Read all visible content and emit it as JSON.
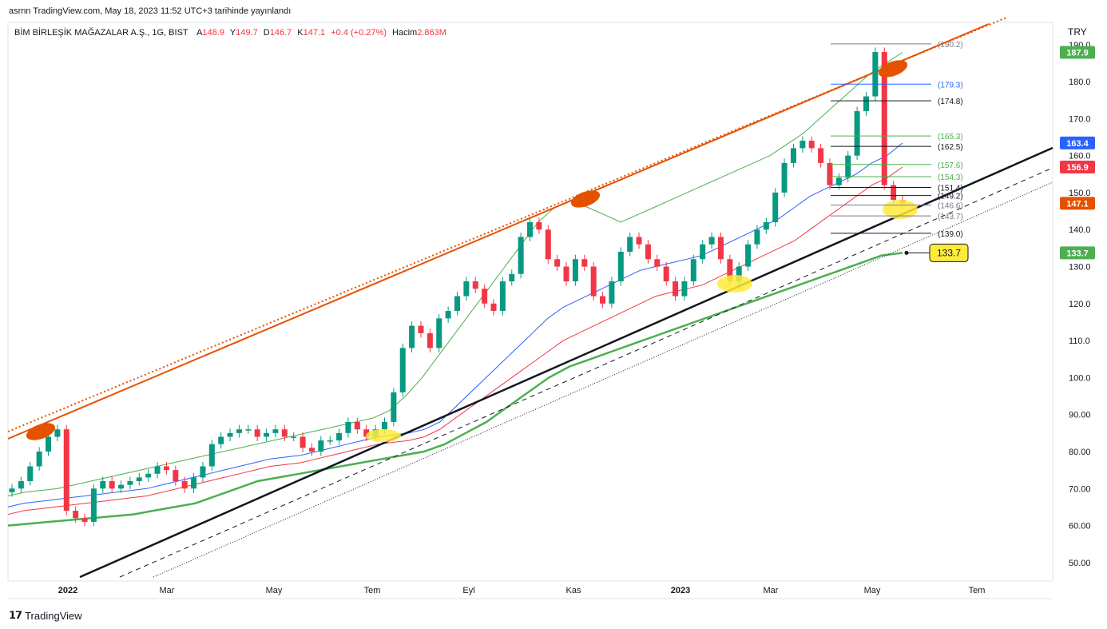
{
  "published_line": "asrnn TradingView.com, May 18, 2023 11:52 UTC+3 tarihinde yayınlandı",
  "legend": {
    "symbol": "BİM BİRLEŞİK MAĞAZALAR A.Ş., 1G, BIST",
    "open_label": "A",
    "open": "148.9",
    "high_label": "Y",
    "high": "149.7",
    "low_label": "D",
    "low": "146.7",
    "close_label": "K",
    "close": "147.1",
    "change": "+0.4 (+0.27%)",
    "volume_label": "Hacim",
    "volume": "2.863M"
  },
  "currency": "TRY",
  "footer_brand": "TradingView",
  "colors": {
    "up": "#089981",
    "down": "#f23645",
    "orange": "#e65100",
    "blue": "#2962ff",
    "ma_green": "#4caf50",
    "ma_red": "#f23645"
  },
  "chart_data": {
    "type": "line",
    "title": "BİM BİRLEŞİK MAĞAZALAR A.Ş., 1G, BIST",
    "ylim": [
      45,
      196
    ],
    "y_ticks": [
      "190.0",
      "180.0",
      "170.0",
      "160.0",
      "150.0",
      "140.0",
      "130.0",
      "120.0",
      "110.0",
      "100.0",
      "90.00",
      "80.00",
      "70.00",
      "60.00",
      "50.00"
    ],
    "x_ticks": [
      "2022",
      "Mar",
      "May",
      "Tem",
      "Eyl",
      "Kas",
      "2023",
      "Mar",
      "May",
      "Tem"
    ],
    "price_close": [
      70,
      72,
      76,
      80,
      84,
      86,
      64,
      62,
      61,
      70,
      72,
      70,
      71,
      72,
      73,
      74,
      76,
      75,
      72,
      70,
      73,
      76,
      82,
      84,
      85,
      86,
      86,
      84,
      85,
      86,
      84,
      84,
      81,
      80,
      83,
      83,
      85,
      88,
      86,
      84,
      86,
      88,
      96,
      108,
      114,
      112,
      108,
      116,
      118,
      122,
      126,
      124,
      120,
      118,
      126,
      128,
      138,
      142,
      140,
      132,
      130,
      126,
      132,
      130,
      122,
      120,
      126,
      134,
      138,
      136,
      132,
      130,
      126,
      122,
      126,
      132,
      136,
      138,
      132,
      126,
      130,
      136,
      140,
      142,
      150,
      158,
      162,
      164,
      162,
      158,
      152,
      154,
      160,
      172,
      176,
      188,
      152,
      148,
      147.1
    ],
    "ma_blue_163_4": [
      65,
      66,
      66.5,
      67,
      67.5,
      68,
      68.5,
      69,
      69.5,
      70,
      71,
      72,
      73,
      74,
      75,
      76,
      77,
      78,
      78.5,
      79,
      80,
      81,
      82,
      83,
      84,
      84.5,
      85,
      86,
      88,
      92,
      96,
      100,
      104,
      108,
      112,
      116,
      119,
      121,
      123,
      125,
      127,
      129,
      130,
      131,
      132,
      133,
      135,
      137,
      139,
      141,
      143,
      146,
      149,
      151,
      153,
      155,
      158,
      160,
      163.4
    ],
    "ma_red_156_9": [
      63,
      64,
      64.5,
      65,
      65.5,
      66,
      66.5,
      67,
      67.5,
      68,
      69,
      70,
      71,
      72,
      73,
      74,
      75,
      76,
      76.5,
      77,
      78,
      79,
      80,
      81,
      82,
      82.5,
      83,
      84,
      86,
      89,
      92,
      95,
      98,
      101,
      104,
      107,
      110,
      112,
      114,
      116,
      118,
      120,
      122,
      123,
      124,
      125,
      127,
      129,
      131,
      133,
      135,
      137,
      140,
      143,
      146,
      149,
      152,
      154,
      156.9
    ],
    "ma_thin_green_187_9": [
      68,
      69,
      69.5,
      70,
      71,
      72,
      73,
      74,
      75,
      76,
      77,
      78,
      79,
      80,
      81,
      82,
      83,
      84,
      85,
      86,
      87,
      88,
      89,
      91,
      95,
      100,
      106,
      112,
      118,
      124,
      130,
      136,
      142,
      146,
      148,
      146,
      144,
      142,
      144,
      146,
      148,
      150,
      152,
      154,
      156,
      158,
      160,
      163,
      166,
      170,
      174,
      178,
      182,
      185,
      187.9
    ],
    "ma_thick_green_133_7": [
      60,
      60.5,
      61,
      61.5,
      62,
      62.5,
      63,
      64,
      65,
      66,
      68,
      70,
      72,
      73,
      74,
      75,
      76,
      77,
      78,
      79,
      80,
      82,
      85,
      88,
      92,
      96,
      100,
      103,
      105,
      107,
      109,
      111,
      113,
      115,
      117,
      119,
      121,
      123,
      125,
      127,
      129,
      131,
      133,
      133.7
    ],
    "levels": [
      {
        "label": "(190.2)",
        "value": 190.2,
        "color": "#787b86"
      },
      {
        "label": "(179.3)",
        "value": 179.3,
        "color": "#2962ff"
      },
      {
        "label": "(174.8)",
        "value": 174.8,
        "color": "#131722"
      },
      {
        "label": "(165.3)",
        "value": 165.3,
        "color": "#4caf50"
      },
      {
        "label": "(162.5)",
        "value": 162.5,
        "color": "#131722"
      },
      {
        "label": "(157.6)",
        "value": 157.6,
        "color": "#4caf50"
      },
      {
        "label": "(154.3)",
        "value": 154.3,
        "color": "#4caf50"
      },
      {
        "label": "(151.4)",
        "value": 151.4,
        "color": "#131722"
      },
      {
        "label": "(149.2)",
        "value": 149.2,
        "color": "#131722"
      },
      {
        "label": "(146.6)",
        "value": 146.6,
        "color": "#787b86"
      },
      {
        "label": "(143.7)",
        "value": 143.7,
        "color": "#787b86"
      },
      {
        "label": "(139.0)",
        "value": 139.0,
        "color": "#131722"
      }
    ],
    "price_tags": [
      {
        "label": "187.9",
        "value": 187.9,
        "color": "#4caf50"
      },
      {
        "label": "163.4",
        "value": 163.4,
        "color": "#2962ff"
      },
      {
        "label": "156.9",
        "value": 156.9,
        "color": "#f23645"
      },
      {
        "label": "147.1",
        "value": 147.1,
        "color": "#e65100"
      },
      {
        "label": "133.7",
        "value": 133.7,
        "color": "#4caf50"
      }
    ],
    "callout": {
      "label": "133.7",
      "value": 133.7
    }
  }
}
